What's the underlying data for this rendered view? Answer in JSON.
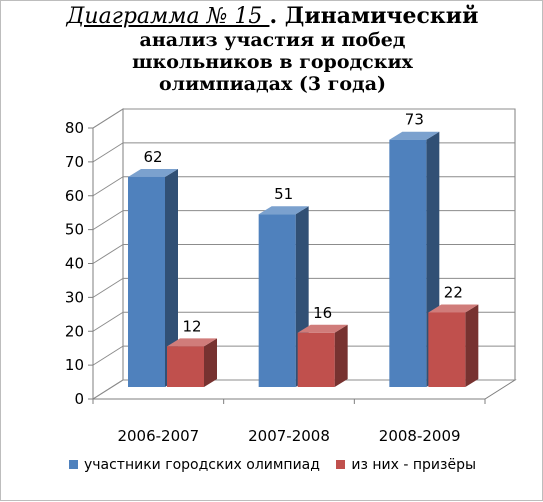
{
  "title": {
    "prefix": "Диаграмма № 15 ",
    "rest": ". Динамический",
    "line2": "анализ участия и побед",
    "line3": "школьников в городских",
    "line4": "олимпиадах (3 года)"
  },
  "chart_data": {
    "type": "bar",
    "categories": [
      "2006-2007",
      "2007-2008",
      "2008-2009"
    ],
    "series": [
      {
        "name": "участники городских олимпиад",
        "values": [
          62,
          51,
          73
        ],
        "color": "#4f81bd"
      },
      {
        "name": "из них - призёры",
        "values": [
          12,
          16,
          22
        ],
        "color": "#c0504d"
      }
    ],
    "ylim": [
      0,
      80
    ],
    "yticks": [
      0,
      10,
      20,
      30,
      40,
      50,
      60,
      70,
      80
    ],
    "grid": true,
    "legend_position": "bottom",
    "style": "3d"
  }
}
